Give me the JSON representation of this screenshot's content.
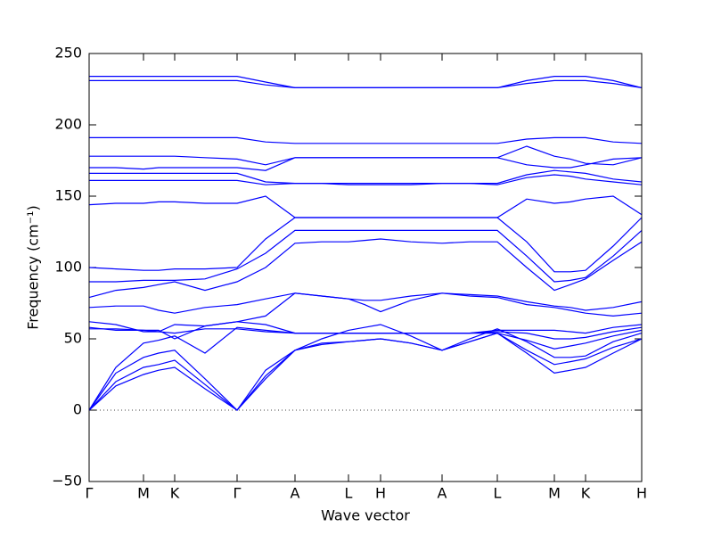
{
  "chart_data": {
    "type": "line",
    "xlabel": "Wave vector",
    "ylabel": "Frequency (cm⁻¹)",
    "color": "#0000ff",
    "x": [
      0,
      0.3,
      0.61,
      0.78,
      0.96,
      1.3,
      1.66,
      1.98,
      2.31,
      2.61,
      2.91,
      3.09,
      3.27,
      3.61,
      3.96,
      4.27,
      4.58,
      4.91,
      5.22,
      5.4,
      5.57,
      5.88,
      6.2
    ],
    "xlim": [
      0,
      6.2
    ],
    "xticks": [
      {
        "value": 0,
        "label": "Γ"
      },
      {
        "value": 0.61,
        "label": "M"
      },
      {
        "value": 0.96,
        "label": "K"
      },
      {
        "value": 1.66,
        "label": "Γ"
      },
      {
        "value": 2.31,
        "label": "A"
      },
      {
        "value": 2.91,
        "label": "L"
      },
      {
        "value": 3.27,
        "label": "H"
      },
      {
        "value": 3.96,
        "label": "A"
      },
      {
        "value": 4.58,
        "label": "L"
      },
      {
        "value": 5.22,
        "label": "M"
      },
      {
        "value": 5.57,
        "label": "K"
      },
      {
        "value": 6.2,
        "label": "H"
      }
    ],
    "ylim": [
      -50,
      250
    ],
    "yticks": [
      {
        "value": -50,
        "label": "−50"
      },
      0,
      50,
      100,
      150,
      200,
      250
    ],
    "series": [
      {
        "values": [
          0,
          17,
          25,
          28,
          30,
          15,
          0,
          22,
          42,
          46,
          48,
          49,
          50,
          47,
          42,
          48,
          54,
          40,
          26,
          28,
          30,
          40,
          50
        ]
      },
      {
        "values": [
          0,
          20,
          30,
          32,
          35,
          18,
          0,
          24,
          42,
          47,
          48,
          49,
          50,
          47,
          42,
          48,
          54,
          42,
          32,
          34,
          36,
          44,
          50
        ]
      },
      {
        "values": [
          0,
          26,
          37,
          40,
          42,
          22,
          0,
          28,
          42,
          50,
          56,
          58,
          60,
          52,
          42,
          50,
          57,
          48,
          37,
          37,
          38,
          48,
          54
        ]
      },
      {
        "values": [
          0,
          30,
          47,
          49,
          52,
          40,
          58,
          56,
          54,
          54,
          54,
          54,
          54,
          54,
          54,
          54,
          54,
          49,
          43,
          45,
          47,
          52,
          56
        ]
      },
      {
        "values": [
          57,
          57,
          56,
          55,
          54,
          57,
          57,
          55,
          54,
          54,
          54,
          54,
          54,
          54,
          54,
          54,
          55,
          54,
          50,
          50,
          51,
          55,
          58
        ]
      },
      {
        "values": [
          58,
          56,
          56,
          56,
          50,
          59,
          62,
          60,
          54,
          54,
          54,
          54,
          54,
          54,
          54,
          54,
          56,
          56,
          56,
          55,
          54,
          58,
          60
        ]
      },
      {
        "values": [
          62,
          60,
          55,
          55,
          60,
          59,
          62,
          66,
          82,
          80,
          78,
          74,
          69,
          77,
          82,
          80,
          79,
          74,
          72,
          70,
          68,
          66,
          68
        ]
      },
      {
        "values": [
          72,
          73,
          73,
          70,
          68,
          72,
          74,
          78,
          82,
          80,
          78,
          77,
          77,
          80,
          82,
          81,
          80,
          76,
          73,
          72,
          70,
          72,
          76
        ]
      },
      {
        "values": [
          79,
          84,
          86,
          88,
          90,
          84,
          90,
          100,
          117,
          118,
          118,
          119,
          120,
          118,
          117,
          118,
          118,
          100,
          84,
          88,
          92,
          105,
          118
        ]
      },
      {
        "values": [
          90,
          90,
          91,
          91,
          91,
          92,
          99,
          110,
          126,
          126,
          126,
          126,
          126,
          126,
          126,
          126,
          126,
          108,
          90,
          91,
          93,
          108,
          126
        ]
      },
      {
        "values": [
          100,
          99,
          98,
          98,
          99,
          99,
          100,
          120,
          135,
          135,
          135,
          135,
          135,
          135,
          135,
          135,
          135,
          118,
          97,
          97,
          98,
          115,
          135
        ]
      },
      {
        "values": [
          144,
          145,
          145,
          146,
          146,
          145,
          145,
          150,
          135,
          135,
          135,
          135,
          135,
          135,
          135,
          135,
          135,
          148,
          145,
          146,
          148,
          150,
          137
        ]
      },
      {
        "values": [
          161,
          161,
          161,
          161,
          161,
          161,
          161,
          158,
          159,
          159,
          158,
          158,
          158,
          158,
          159,
          159,
          158,
          163,
          165,
          164,
          162,
          160,
          158
        ]
      },
      {
        "values": [
          166,
          166,
          166,
          166,
          166,
          166,
          166,
          160,
          159,
          159,
          159,
          159,
          159,
          159,
          159,
          159,
          159,
          165,
          168,
          167,
          166,
          162,
          160
        ]
      },
      {
        "values": [
          170,
          170,
          169,
          170,
          170,
          170,
          170,
          168,
          177,
          177,
          177,
          177,
          177,
          177,
          177,
          177,
          177,
          172,
          170,
          170,
          172,
          176,
          177
        ]
      },
      {
        "values": [
          178,
          178,
          178,
          178,
          178,
          177,
          176,
          172,
          177,
          177,
          177,
          177,
          177,
          177,
          177,
          177,
          177,
          185,
          178,
          176,
          173,
          172,
          177
        ]
      },
      {
        "values": [
          191,
          191,
          191,
          191,
          191,
          191,
          191,
          188,
          187,
          187,
          187,
          187,
          187,
          187,
          187,
          187,
          187,
          190,
          191,
          191,
          191,
          188,
          187
        ]
      },
      {
        "values": [
          231,
          231,
          231,
          231,
          231,
          231,
          231,
          228,
          226,
          226,
          226,
          226,
          226,
          226,
          226,
          226,
          226,
          229,
          231,
          231,
          231,
          229,
          226
        ]
      },
      {
        "values": [
          234,
          234,
          234,
          234,
          234,
          234,
          234,
          230,
          226,
          226,
          226,
          226,
          226,
          226,
          226,
          226,
          226,
          231,
          234,
          234,
          234,
          231,
          226
        ]
      }
    ]
  }
}
